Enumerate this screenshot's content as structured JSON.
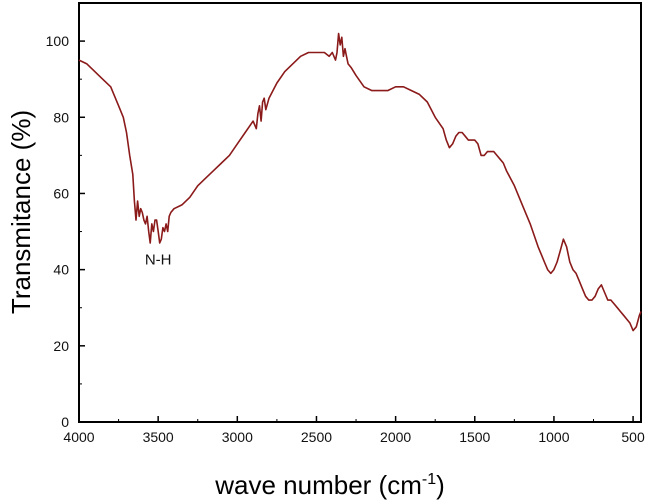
{
  "chart_data": {
    "type": "line",
    "title": "",
    "xlabel": "wave number (cm",
    "xlabel_sup": "-1",
    "xlabel_end": ")",
    "ylabel": "Transmitance (%)",
    "xlim": [
      4000,
      450
    ],
    "ylim": [
      0,
      110
    ],
    "x_reversed": true,
    "grid": false,
    "legend": "none",
    "line_color": "#8b1a1a",
    "x_ticks": [
      {
        "value": 4000,
        "label": "4000"
      },
      {
        "value": 3500,
        "label": "3500"
      },
      {
        "value": 3000,
        "label": "3000"
      },
      {
        "value": 2500,
        "label": "2500"
      },
      {
        "value": 2000,
        "label": "2000"
      },
      {
        "value": 1500,
        "label": "1500"
      },
      {
        "value": 1000,
        "label": "1000"
      },
      {
        "value": 500,
        "label": "500"
      }
    ],
    "y_ticks": [
      {
        "value": 0,
        "label": "0"
      },
      {
        "value": 20,
        "label": "20"
      },
      {
        "value": 40,
        "label": "40"
      },
      {
        "value": 60,
        "label": "60"
      },
      {
        "value": 80,
        "label": "80"
      },
      {
        "value": 100,
        "label": "100"
      }
    ],
    "annotations": [
      {
        "text": "N-H",
        "x": 3500,
        "y": 40
      }
    ],
    "series": [
      {
        "x": [
          4000,
          3950,
          3900,
          3850,
          3800,
          3750,
          3720,
          3700,
          3680,
          3660,
          3650,
          3640,
          3630,
          3620,
          3610,
          3600,
          3590,
          3580,
          3570,
          3560,
          3550,
          3540,
          3530,
          3520,
          3510,
          3500,
          3490,
          3480,
          3470,
          3460,
          3450,
          3440,
          3430,
          3420,
          3400,
          3350,
          3300,
          3250,
          3200,
          3150,
          3100,
          3050,
          3000,
          2950,
          2900,
          2880,
          2870,
          2860,
          2850,
          2840,
          2830,
          2820,
          2800,
          2750,
          2700,
          2650,
          2600,
          2550,
          2500,
          2450,
          2420,
          2400,
          2380,
          2370,
          2360,
          2350,
          2340,
          2330,
          2320,
          2310,
          2300,
          2280,
          2250,
          2200,
          2150,
          2100,
          2050,
          2000,
          1950,
          1900,
          1850,
          1800,
          1750,
          1700,
          1680,
          1660,
          1640,
          1620,
          1600,
          1580,
          1560,
          1540,
          1520,
          1500,
          1480,
          1460,
          1440,
          1420,
          1400,
          1380,
          1360,
          1340,
          1320,
          1300,
          1250,
          1200,
          1150,
          1100,
          1080,
          1060,
          1040,
          1020,
          1000,
          980,
          960,
          940,
          920,
          900,
          880,
          860,
          840,
          820,
          800,
          780,
          760,
          740,
          720,
          700,
          680,
          660,
          640,
          620,
          600,
          580,
          560,
          540,
          520,
          500,
          480,
          460,
          450
        ],
        "y": [
          95,
          94,
          92,
          90,
          88,
          83,
          80,
          76,
          70,
          65,
          58,
          53,
          58,
          54,
          56,
          55,
          53,
          52,
          54,
          50,
          47,
          52,
          50,
          53,
          53,
          50,
          47,
          48,
          51,
          50,
          52,
          50,
          54,
          55,
          56,
          57,
          59,
          62,
          64,
          66,
          68,
          70,
          73,
          76,
          79,
          77,
          81,
          83,
          79,
          84,
          85,
          82,
          85,
          89,
          92,
          94,
          96,
          97,
          97,
          97,
          96,
          97,
          95,
          97,
          102,
          99,
          101,
          96,
          98,
          96,
          94,
          93,
          91,
          88,
          87,
          87,
          87,
          88,
          88,
          87,
          86,
          84,
          80,
          77,
          74,
          72,
          73,
          75,
          76,
          76,
          75,
          74,
          74,
          74,
          73,
          70,
          70,
          71,
          71,
          71,
          70,
          69,
          68,
          66,
          62,
          57,
          52,
          46,
          44,
          42,
          40,
          39,
          40,
          42,
          45,
          48,
          46,
          42,
          40,
          39,
          37,
          35,
          33,
          32,
          32,
          33,
          35,
          36,
          34,
          32,
          32,
          31,
          30,
          29,
          28,
          27,
          26,
          24,
          25,
          28,
          29
        ]
      }
    ]
  }
}
